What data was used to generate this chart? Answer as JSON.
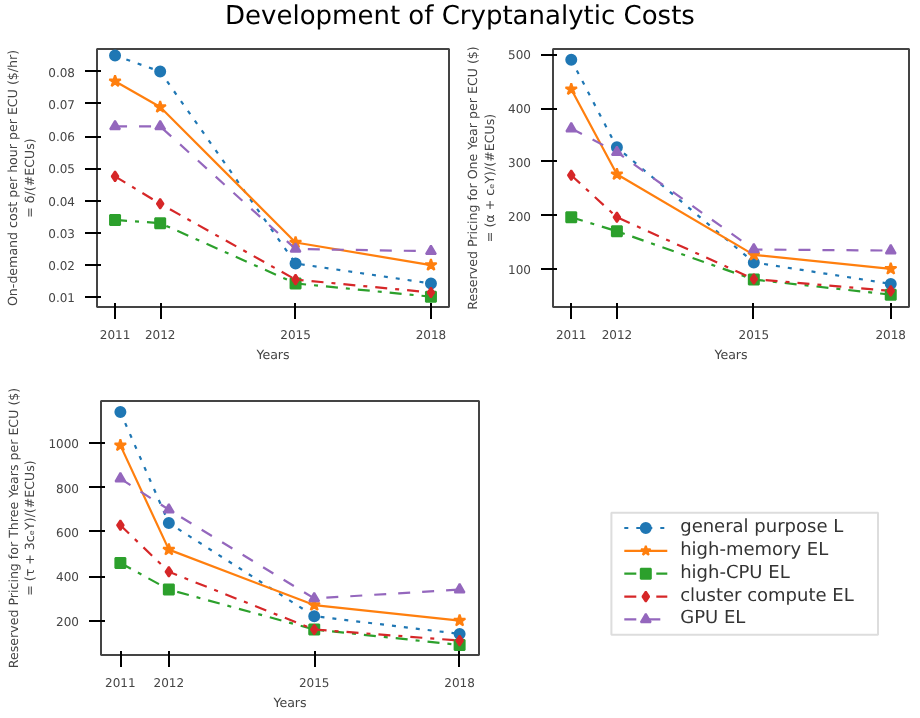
{
  "chart_data": [
    {
      "type": "line",
      "title": "Development of Cryptanalytic Costs",
      "xlabel": "Years",
      "ylabel": "On-demand cost per hour per ECU ($/hr)\n= δ/(#ECUs)",
      "x": [
        2011,
        2012,
        2015,
        2018
      ],
      "xlim": [
        2010.6,
        2018.4
      ],
      "xticks": [
        2011,
        2012,
        2015,
        2018
      ],
      "ylim": [
        0.007,
        0.087
      ],
      "yticks": [
        0.01,
        0.02,
        0.03,
        0.04,
        0.05,
        0.06,
        0.07,
        0.08
      ],
      "grid": false,
      "legend": false,
      "series": [
        {
          "color": "#1f77b4",
          "marker": "circle",
          "line_style": "dotted",
          "values": [
            0.085,
            0.08,
            0.0205,
            0.0143
          ]
        },
        {
          "color": "#ff7f0e",
          "marker": "star",
          "line_style": "solid",
          "values": [
            0.077,
            0.069,
            0.027,
            0.02
          ]
        },
        {
          "color": "#2ca02c",
          "marker": "square",
          "line_style": "dashdot",
          "values": [
            0.034,
            0.033,
            0.0143,
            0.0102
          ]
        },
        {
          "color": "#d62728",
          "marker": "diamond",
          "line_style": "dashdot",
          "values": [
            0.0475,
            0.039,
            0.0155,
            0.0115
          ]
        },
        {
          "color": "#9467bd",
          "marker": "triangle",
          "line_style": "dashed",
          "values": [
            0.063,
            0.063,
            0.025,
            0.0243
          ]
        }
      ]
    },
    {
      "type": "line",
      "xlabel": "Years",
      "ylabel": "Reserved Pricing for One Year per ECU ($)\n= (α + cₑY)/(#ECUs)",
      "x": [
        2011,
        2012,
        2015,
        2018
      ],
      "xlim": [
        2010.6,
        2018.4
      ],
      "xticks": [
        2011,
        2012,
        2015,
        2018
      ],
      "ylim": [
        30,
        510
      ],
      "yticks": [
        100,
        200,
        300,
        400,
        500
      ],
      "grid": false,
      "legend": false,
      "series": [
        {
          "color": "#1f77b4",
          "marker": "circle",
          "line_style": "dotted",
          "values": [
            490,
            327,
            113,
            73
          ]
        },
        {
          "color": "#ff7f0e",
          "marker": "star",
          "line_style": "solid",
          "values": [
            435,
            277,
            127,
            101
          ]
        },
        {
          "color": "#2ca02c",
          "marker": "square",
          "line_style": "dashdot",
          "values": [
            197,
            171,
            81,
            53
          ]
        },
        {
          "color": "#d62728",
          "marker": "diamond",
          "line_style": "dashdot",
          "values": [
            275,
            197,
            82,
            60
          ]
        },
        {
          "color": "#9467bd",
          "marker": "triangle",
          "line_style": "dashed",
          "values": [
            362,
            318,
            137,
            135
          ]
        }
      ]
    },
    {
      "type": "line",
      "xlabel": "Years",
      "ylabel": "Reserved Pricing for Three Years per ECU ($)\n= (τ + 3cₑY)/(#ECUs)",
      "x": [
        2011,
        2012,
        2015,
        2018
      ],
      "xlim": [
        2010.6,
        2018.4
      ],
      "xticks": [
        2011,
        2012,
        2015,
        2018
      ],
      "ylim": [
        45,
        1190
      ],
      "yticks": [
        200,
        400,
        600,
        800,
        1000
      ],
      "grid": false,
      "legend": "right",
      "series": [
        {
          "name": "general purpose L",
          "color": "#1f77b4",
          "marker": "circle",
          "line_style": "dotted",
          "values": [
            1140,
            640,
            220,
            140
          ]
        },
        {
          "name": "high-memory EL",
          "color": "#ff7f0e",
          "marker": "star",
          "line_style": "solid",
          "values": [
            990,
            520,
            270,
            200
          ]
        },
        {
          "name": "high-CPU EL",
          "color": "#2ca02c",
          "marker": "square",
          "line_style": "dashdot",
          "values": [
            460,
            340,
            160,
            90
          ]
        },
        {
          "name": "cluster compute EL",
          "color": "#d62728",
          "marker": "diamond",
          "line_style": "dashdot",
          "values": [
            630,
            420,
            160,
            110
          ]
        },
        {
          "name": "GPU EL",
          "color": "#9467bd",
          "marker": "triangle",
          "line_style": "dashed",
          "values": [
            840,
            700,
            300,
            340
          ]
        }
      ]
    }
  ]
}
